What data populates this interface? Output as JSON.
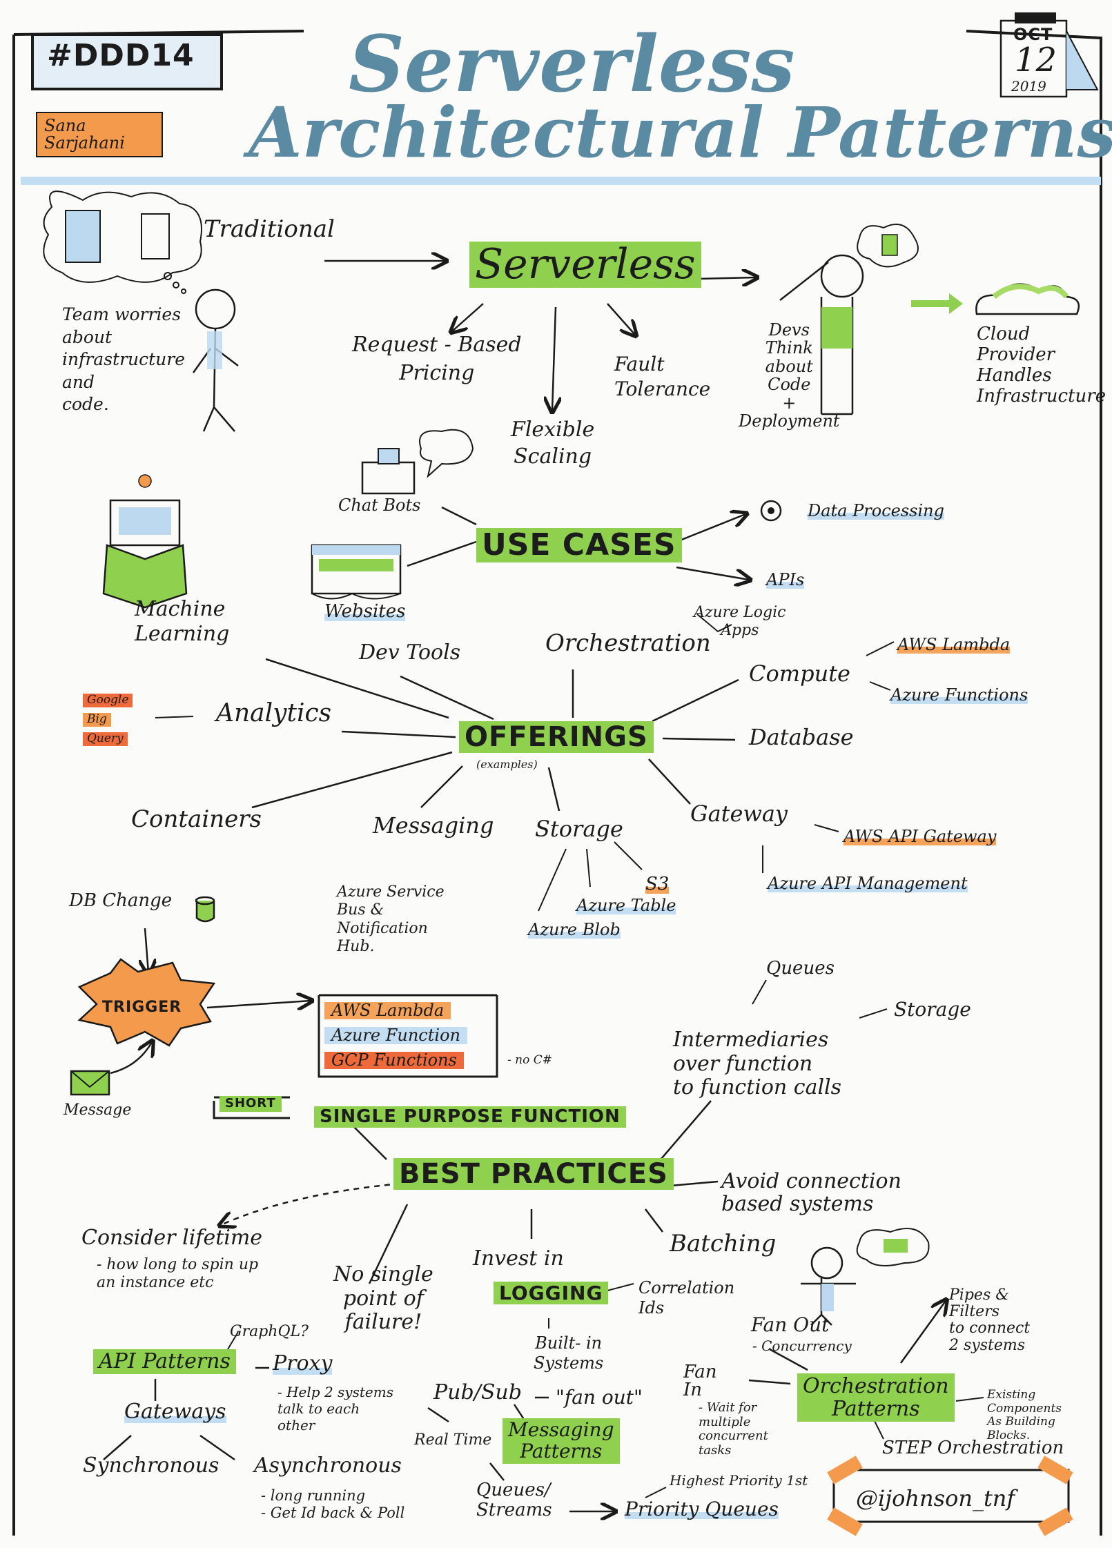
{
  "header": {
    "event_tag": "#DDD14",
    "author": "Sana\nSarjahani",
    "title_line1": "Serverless",
    "title_line2": "Architectural Patterns",
    "date_month": "OCT",
    "date_day": "12",
    "date_year": "2019"
  },
  "serverless_section": {
    "traditional": "Traditional",
    "team_worries": "Team worries\nabout\ninfrastructure\nand\ncode.",
    "serverless": "Serverless",
    "request_pricing": "Request - Based\nPricing",
    "flexible_scaling": "Flexible\nScaling",
    "fault_tolerance": "Fault\nTolerance",
    "devs_think": "Devs\nThink\nabout\nCode\n+\nDeployment",
    "cloud_provider": "Cloud\nProvider\nHandles\nInfrastructure"
  },
  "use_cases": {
    "title": "USE CASES",
    "chat_bots": "Chat Bots",
    "websites": "Websites",
    "machine_learning": "Machine\nLearning",
    "data_processing": "Data Processing",
    "apis": "APIs"
  },
  "offerings": {
    "title": "OFFERINGS",
    "examples": "(examples)",
    "dev_tools": "Dev Tools",
    "orchestration": "Orchestration",
    "azure_logic_apps": "Azure Logic\nApps",
    "compute": "Compute",
    "aws_lambda": "AWS Lambda",
    "azure_functions": "Azure Functions",
    "analytics": "Analytics",
    "google": "Google",
    "big": "Big",
    "query": "Query",
    "database": "Database",
    "containers": "Containers",
    "messaging": "Messaging",
    "azure_service_bus": "Azure Service\nBus &\nNotification\nHub.",
    "storage": "Storage",
    "s3": "S3",
    "azure_table": "Azure Table",
    "azure_blob": "Azure Blob",
    "gateway": "Gateway",
    "aws_api_gateway": "AWS API Gateway",
    "azure_api_mgmt": "Azure API Management"
  },
  "triggers": {
    "db_change": "DB Change",
    "trigger": "TRIGGER",
    "message": "Message",
    "fn_aws": "AWS Lambda",
    "fn_azure": "Azure Function",
    "fn_gcp": "GCP Functions",
    "lang_note": "- no C#"
  },
  "best_practices": {
    "title": "BEST PRACTICES",
    "short": "SHORT",
    "single_purpose": "SINGLE PURPOSE FUNCTION",
    "queues": "Queues",
    "storage": "Storage",
    "intermediaries": "Intermediaries\nover function\nto function calls",
    "avoid_connection": "Avoid connection\nbased systems",
    "consider_lifetime": "Consider lifetime",
    "lifetime_note": "- how long to spin up\nan instance etc",
    "no_single_point": "No single\npoint of\nfailure!",
    "invest_in": "Invest in",
    "logging": "LOGGING",
    "correlation_ids": "Correlation\nIds",
    "built_in": "Built- in\nSystems",
    "batching": "Batching"
  },
  "patterns": {
    "graphql": "GraphQL?",
    "api_patterns": "API Patterns",
    "proxy": "Proxy",
    "proxy_note": "- Help 2 systems\ntalk to each\nother",
    "gateways": "Gateways",
    "synchronous": "Synchronous",
    "asynchronous": "Asynchronous",
    "async_note": "- long running\n- Get Id back & Poll",
    "pub_sub": "Pub/Sub",
    "fan_out_quote": "\"fan out\"",
    "real_time": "Real Time",
    "messaging_patterns": "Messaging\nPatterns",
    "queues_streams": "Queues/\nStreams",
    "priority_queues": "Priority Queues",
    "highest_priority": "Highest Priority 1st",
    "fan_out": "Fan Out",
    "concurrency": "- Concurrency",
    "fan_in": "Fan\nIn",
    "fan_in_note": "- Wait for\nmultiple\nconcurrent\ntasks",
    "orchestration_patterns": "Orchestration\nPatterns",
    "pipes_filters": "Pipes &\nFilters\nto connect\n2 systems",
    "existing_components": "Existing\nComponents\nAs Building\nBlocks.",
    "step_orchestration": "STEP Orchestration",
    "handle": "@ijohnson_tnf"
  },
  "colors": {
    "title_blue": "#5b8aa3",
    "green": "#8fd14f",
    "orange": "#f39a4c",
    "red_orange": "#ee6a3a",
    "light_blue": "#bcd9ef"
  }
}
